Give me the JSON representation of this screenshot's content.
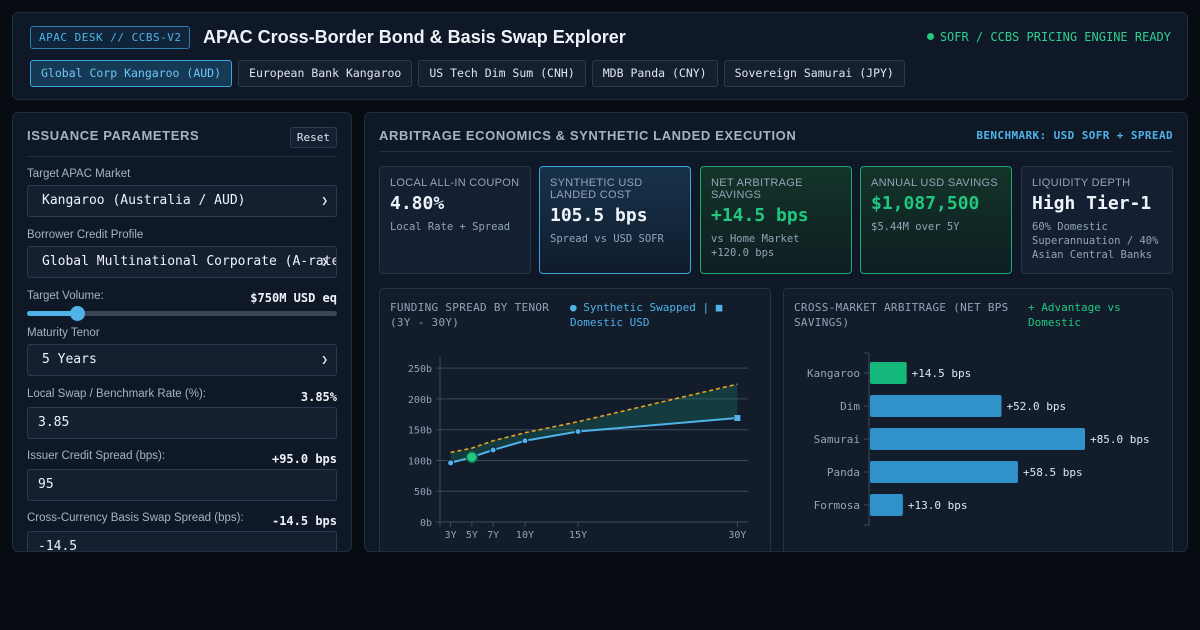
{
  "header": {
    "badge": "APAC DESK // CCBS-V2",
    "title": "APAC Cross-Border Bond & Basis Swap Explorer",
    "status": "SOFR / CCBS PRICING ENGINE READY",
    "tabs": [
      {
        "label": "Global Corp Kangaroo (AUD)",
        "active": true
      },
      {
        "label": "European Bank Kangaroo",
        "active": false
      },
      {
        "label": "US Tech Dim Sum (CNH)",
        "active": false
      },
      {
        "label": "MDB Panda (CNY)",
        "active": false
      },
      {
        "label": "Sovereign Samurai (JPY)",
        "active": false
      }
    ]
  },
  "params": {
    "title": "ISSUANCE PARAMETERS",
    "reset_label": "Reset",
    "market_label": "Target APAC Market",
    "market_value": "Kangaroo (Australia / AUD)",
    "credit_label": "Borrower Credit Profile",
    "credit_value": "Global Multinational Corporate (A-rated)",
    "volume_label": "Target Volume:",
    "volume_value": "$750M USD eq",
    "volume_fraction": 0.16,
    "tenor_label": "Maturity Tenor",
    "tenor_value": "5 Years",
    "swap_label": "Local Swap / Benchmark Rate (%):",
    "swap_display": "3.85%",
    "swap_input": "3.85",
    "spread_label": "Issuer Credit Spread (bps):",
    "spread_display": "+95.0 bps",
    "spread_input": "95",
    "basis_label": "Cross-Currency Basis Swap Spread (bps):",
    "basis_display": "-14.5 bps",
    "basis_input": "-14.5"
  },
  "economics": {
    "title": "ARBITRAGE ECONOMICS & SYNTHETIC LANDED EXECUTION",
    "benchmark": "BENCHMARK: USD SOFR + SPREAD",
    "cards": [
      {
        "label": "LOCAL ALL-IN COUPON",
        "value": "4.80%",
        "sub": "Local Rate + Spread",
        "style": "plain"
      },
      {
        "label": "SYNTHETIC USD LANDED COST",
        "value": "105.5 bps",
        "sub": "Spread vs USD SOFR",
        "style": "blue"
      },
      {
        "label": "NET ARBITRAGE SAVINGS",
        "value": "+14.5 bps",
        "sub": "vs Home Market +120.0 bps",
        "style": "green"
      },
      {
        "label": "ANNUAL USD SAVINGS",
        "value": "$1,087,500",
        "sub": "$5.44M over 5Y",
        "style": "green"
      },
      {
        "label": "LIQUIDITY DEPTH",
        "value": "High Tier-1",
        "sub": "60% Domestic Superannuation / 40% Asian Central Banks",
        "style": "plain"
      }
    ]
  },
  "colors": {
    "synthetic": "#4fb3e8",
    "domestic": "#e8a31f",
    "advantage": "#22c780",
    "bar_blue": "#2f93c9",
    "bar_green": "#14b87a",
    "grid": "#3d4a5c",
    "axis_text": "#93a3b8"
  },
  "chart_data": [
    {
      "type": "line",
      "title": "FUNDING SPREAD BY TENOR (3Y - 30Y)",
      "legend": "● Synthetic Swapped | ■ Domestic USD",
      "x": [
        3,
        5,
        7,
        10,
        15,
        30
      ],
      "x_tick_labels": [
        "3Y",
        "5Y",
        "7Y",
        "10Y",
        "15Y",
        "30Y"
      ],
      "y_ticks": [
        0,
        50,
        100,
        150,
        200,
        250
      ],
      "y_tick_labels": [
        "0b",
        "50b",
        "100b",
        "150b",
        "200b",
        "250b"
      ],
      "xlim": [
        2,
        31
      ],
      "ylim": [
        0,
        260
      ],
      "series": [
        {
          "name": "Synthetic Swapped",
          "values": [
            96,
            105.5,
            117,
            132,
            147,
            169
          ]
        },
        {
          "name": "Domestic USD",
          "values": [
            113,
            120,
            132,
            145,
            163,
            224
          ]
        }
      ],
      "highlight_x": 5
    },
    {
      "type": "bar",
      "orientation": "horizontal",
      "title": "CROSS-MARKET ARBITRAGE (NET BPS SAVINGS)",
      "legend": "+ Advantage vs Domestic",
      "categories": [
        "Kangaroo",
        "Dim",
        "Samurai",
        "Panda",
        "Formosa"
      ],
      "values": [
        14.5,
        52.0,
        85.0,
        58.5,
        13.0
      ],
      "value_labels": [
        "+14.5 bps",
        "+52.0 bps",
        "+85.0 bps",
        "+58.5 bps",
        "+13.0 bps"
      ],
      "highlight": "Kangaroo",
      "xlim": [
        0,
        85
      ]
    }
  ]
}
